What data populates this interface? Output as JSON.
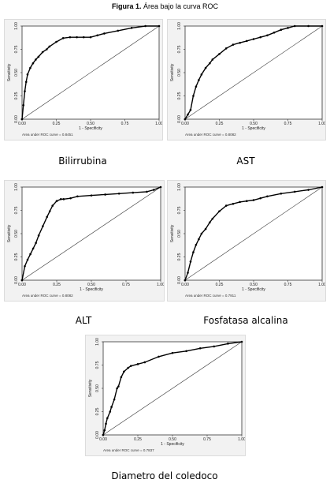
{
  "figure": {
    "title_bold": "Figura 1.",
    "title_rest": " Área bajo la curva ROC"
  },
  "chart_data": [
    {
      "type": "line",
      "caption": "Bilirrubina",
      "xlabel": "1 - Specificity",
      "ylabel": "Sensitivity",
      "auc_label": "Area under ROC curve = 0.8451",
      "xlim": [
        0,
        1
      ],
      "ylim": [
        0,
        1
      ],
      "ticks": [
        "0.00",
        "0.25",
        "0.50",
        "0.75",
        "1.00"
      ],
      "x": [
        0,
        0.01,
        0.02,
        0.03,
        0.04,
        0.06,
        0.08,
        0.1,
        0.12,
        0.15,
        0.18,
        0.2,
        0.25,
        0.3,
        0.35,
        0.4,
        0.45,
        0.5,
        0.55,
        0.6,
        0.7,
        0.8,
        0.9,
        1.0
      ],
      "y": [
        0,
        0.15,
        0.3,
        0.4,
        0.48,
        0.55,
        0.6,
        0.64,
        0.67,
        0.72,
        0.75,
        0.78,
        0.83,
        0.87,
        0.88,
        0.88,
        0.88,
        0.88,
        0.9,
        0.92,
        0.95,
        0.98,
        1.0,
        1.0
      ]
    },
    {
      "type": "line",
      "caption": "AST",
      "xlabel": "1 - Specificity",
      "ylabel": "Sensitivity",
      "auc_label": "Area under ROC curve = 0.8082",
      "xlim": [
        0,
        1
      ],
      "ylim": [
        0,
        1
      ],
      "ticks": [
        "0.00",
        "0.25",
        "0.50",
        "0.75",
        "1.00"
      ],
      "x": [
        0,
        0.02,
        0.04,
        0.06,
        0.08,
        0.1,
        0.12,
        0.15,
        0.18,
        0.2,
        0.25,
        0.3,
        0.35,
        0.4,
        0.45,
        0.5,
        0.55,
        0.6,
        0.65,
        0.7,
        0.75,
        0.8,
        0.9,
        1.0
      ],
      "y": [
        0,
        0.05,
        0.1,
        0.25,
        0.35,
        0.42,
        0.48,
        0.55,
        0.6,
        0.64,
        0.7,
        0.76,
        0.8,
        0.82,
        0.84,
        0.86,
        0.88,
        0.9,
        0.93,
        0.96,
        0.98,
        1.0,
        1.0,
        1.0
      ]
    },
    {
      "type": "line",
      "caption": "ALT",
      "xlabel": "1 - Specificity",
      "ylabel": "Sensitivity",
      "auc_label": "Area under ROC curve = 0.8082",
      "xlim": [
        0,
        1
      ],
      "ylim": [
        0,
        1
      ],
      "ticks": [
        "0.00",
        "0.25",
        "0.50",
        "0.75",
        "1.00"
      ],
      "x": [
        0,
        0.02,
        0.04,
        0.06,
        0.08,
        0.1,
        0.12,
        0.15,
        0.18,
        0.2,
        0.22,
        0.25,
        0.28,
        0.3,
        0.35,
        0.4,
        0.5,
        0.6,
        0.7,
        0.8,
        0.9,
        0.95,
        1.0
      ],
      "y": [
        0,
        0.15,
        0.22,
        0.28,
        0.34,
        0.4,
        0.48,
        0.58,
        0.68,
        0.74,
        0.8,
        0.85,
        0.87,
        0.87,
        0.88,
        0.9,
        0.91,
        0.92,
        0.93,
        0.94,
        0.95,
        0.97,
        1.0
      ]
    },
    {
      "type": "line",
      "caption": "Fosfatasa alcalina",
      "xlabel": "1 - Specificity",
      "ylabel": "Sensitivity",
      "auc_label": "Area under ROC curve = 0.7911",
      "xlim": [
        0,
        1
      ],
      "ylim": [
        0,
        1
      ],
      "ticks": [
        "0.00",
        "0.25",
        "0.50",
        "0.75",
        "1.00"
      ],
      "x": [
        0,
        0.02,
        0.04,
        0.06,
        0.08,
        0.1,
        0.12,
        0.15,
        0.18,
        0.2,
        0.25,
        0.3,
        0.35,
        0.4,
        0.45,
        0.5,
        0.55,
        0.6,
        0.7,
        0.8,
        0.9,
        1.0
      ],
      "y": [
        0,
        0.08,
        0.2,
        0.3,
        0.38,
        0.44,
        0.5,
        0.55,
        0.62,
        0.66,
        0.74,
        0.8,
        0.82,
        0.84,
        0.85,
        0.86,
        0.88,
        0.9,
        0.93,
        0.95,
        0.97,
        1.0
      ]
    },
    {
      "type": "line",
      "caption": "Diametro del coledoco",
      "xlabel": "1 - Specificity",
      "ylabel": "Sensitivity",
      "auc_label": "Area under ROC curve = 0.7837",
      "xlim": [
        0,
        1
      ],
      "ylim": [
        0,
        1
      ],
      "ticks": [
        "0.00",
        "0.25",
        "0.50",
        "0.75",
        "1.00"
      ],
      "x": [
        0,
        0.01,
        0.02,
        0.03,
        0.05,
        0.06,
        0.08,
        0.1,
        0.11,
        0.13,
        0.15,
        0.18,
        0.2,
        0.25,
        0.3,
        0.4,
        0.5,
        0.6,
        0.7,
        0.8,
        0.9,
        1.0
      ],
      "y": [
        0,
        0.05,
        0.12,
        0.18,
        0.25,
        0.3,
        0.38,
        0.5,
        0.52,
        0.62,
        0.68,
        0.72,
        0.74,
        0.76,
        0.78,
        0.84,
        0.88,
        0.9,
        0.93,
        0.95,
        0.98,
        1.0
      ]
    }
  ]
}
